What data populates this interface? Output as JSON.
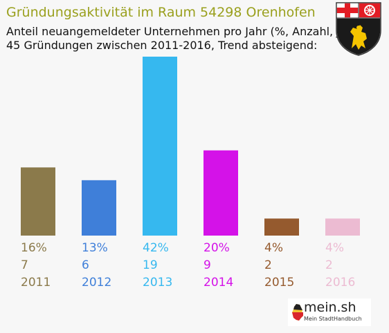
{
  "header": {
    "title": "Gründungsaktivität im Raum 54298 Orenhofen",
    "subtitle_line1": "Anteil neuangemeldeter Unternehmen pro Jahr (%, Anzahl, Jahr)",
    "subtitle_line2": "45 Gründungen zwischen 2011-2016, Trend absteigend:"
  },
  "colors": {
    "title": "#9aa01e",
    "background": "#f7f7f7"
  },
  "crest": {
    "icon": "coat-of-arms-icon"
  },
  "brand": {
    "name": "mein.sh",
    "tagline": "Mein StadtHandbuch",
    "icon": "germany-map-icon"
  },
  "chart_data": {
    "type": "bar",
    "categories": [
      "2011",
      "2012",
      "2013",
      "2014",
      "2015",
      "2016"
    ],
    "values": [
      16,
      13,
      42,
      20,
      4,
      4
    ],
    "percent_labels": [
      "16%",
      "13%",
      "42%",
      "20%",
      "4%",
      "4%"
    ],
    "counts": [
      7,
      6,
      19,
      9,
      2,
      2
    ],
    "colors": [
      "#8b7a4b",
      "#3f7fd9",
      "#36b8ef",
      "#d412e8",
      "#955a2e",
      "#ecbbd2"
    ],
    "ylim": [
      0,
      42
    ],
    "grid": false,
    "legend": "none"
  }
}
